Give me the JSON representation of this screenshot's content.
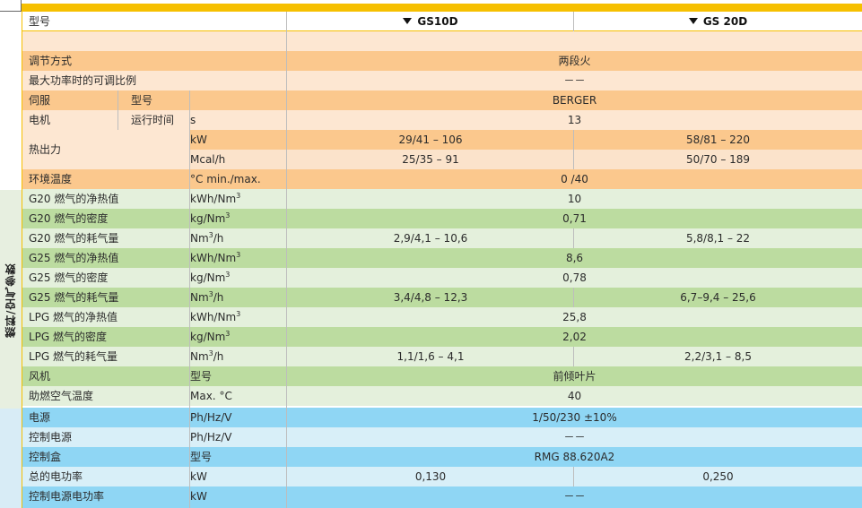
{
  "header": {
    "model_label": "型号",
    "col1": "GS10D",
    "col2": "GS 20D"
  },
  "side_label": "燃料/空气参数",
  "rows": {
    "regulation": {
      "name": "调节方式",
      "value": "两段火"
    },
    "ratio": {
      "name": "最大功率时的可调比例",
      "value": "－－"
    },
    "servo": {
      "name": "伺服",
      "sub": "型号",
      "value": "BERGER"
    },
    "motor": {
      "name": "电机",
      "sub": "运行时间",
      "unit": "s",
      "value": "13"
    },
    "heat": {
      "name": "热出力",
      "unit_a": "kW",
      "a1": "29/41 – 106",
      "a2": "58/81 – 220",
      "unit_b": "Mcal/h",
      "b1": "25/35 – 91",
      "b2": "50/70 – 189"
    },
    "ambient": {
      "name": "环境温度",
      "unit": "°C min./max.",
      "value": "0 /40"
    },
    "g20_heat": {
      "name": "G20 燃气的净热值",
      "unit": "kWh/Nm",
      "unit_sup": "3",
      "value": "10"
    },
    "g20_density": {
      "name": "G20 燃气的密度",
      "unit": "kg/Nm",
      "unit_sup": "3",
      "value": "0,71"
    },
    "g20_consumption": {
      "name": "G20 燃气的耗气量",
      "unit": "Nm",
      "unit_sup": "3",
      "unit_suffix": "/h",
      "v1": "2,9/4,1 – 10,6",
      "v2": "5,8/8,1 – 22"
    },
    "g25_heat": {
      "name": "G25 燃气的净热值",
      "unit": "kWh/Nm",
      "unit_sup": "3",
      "value": "8,6"
    },
    "g25_density": {
      "name": "G25 燃气的密度",
      "unit": "kg/Nm",
      "unit_sup": "3",
      "value": "0,78"
    },
    "g25_consumption": {
      "name": "G25 燃气的耗气量",
      "unit": "Nm",
      "unit_sup": "3",
      "unit_suffix": "/h",
      "v1": "3,4/4,8 – 12,3",
      "v2": "6,7–9,4 – 25,6"
    },
    "lpg_heat": {
      "name": "LPG 燃气的净热值",
      "unit": "kWh/Nm",
      "unit_sup": "3",
      "value": "25,8"
    },
    "lpg_density": {
      "name": "LPG 燃气的密度",
      "unit": "kg/Nm",
      "unit_sup": "3",
      "value": "2,02"
    },
    "lpg_consumption": {
      "name": "LPG 燃气的耗气量",
      "unit": "Nm",
      "unit_sup": "3",
      "unit_suffix": "/h",
      "v1": "1,1/1,6 – 4,1",
      "v2": "2,2/3,1 – 8,5"
    },
    "fan": {
      "name": "风机",
      "unit": "型号",
      "value": "前倾叶片"
    },
    "air_temp": {
      "name": "助燃空气温度",
      "unit": "Max. °C",
      "value": "40"
    },
    "power": {
      "name": "电源",
      "unit": "Ph/Hz/V",
      "value": "1/50/230 ±10%"
    },
    "control_power": {
      "name": "控制电源",
      "unit": "Ph/Hz/V",
      "value": "－－"
    },
    "control_box": {
      "name": "控制盒",
      "unit": "型号",
      "value": "RMG 88.620A2"
    },
    "total_power": {
      "name": "总的电功率",
      "unit": "kW",
      "v1": "0,130",
      "v2": "0,250"
    },
    "control_power_rating": {
      "name": "控制电源电功率",
      "unit": "kW",
      "value": "－－"
    }
  }
}
